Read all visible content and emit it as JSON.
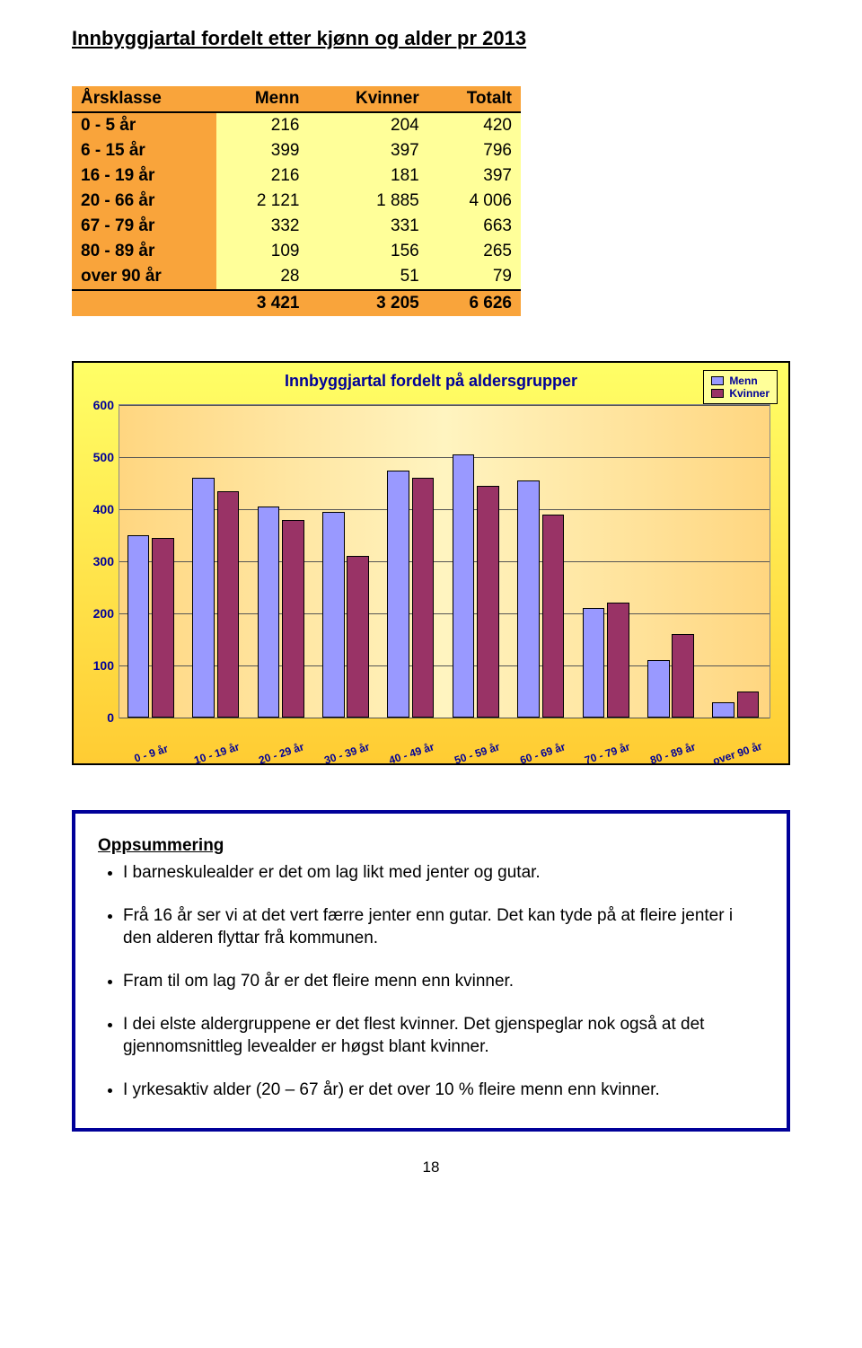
{
  "page": {
    "title": "Innbyggjartal fordelt etter kjønn og alder pr 2013",
    "page_number": "18"
  },
  "table": {
    "columns": [
      "Årsklasse",
      "Menn",
      "Kvinner",
      "Totalt"
    ],
    "rows": [
      [
        "0 -   5 år",
        "216",
        "204",
        "420"
      ],
      [
        "6 -  15 år",
        "399",
        "397",
        "796"
      ],
      [
        "16 -  19 år",
        "216",
        "181",
        "397"
      ],
      [
        "20 -  66 år",
        "2 121",
        "1 885",
        "4 006"
      ],
      [
        "67 -  79 år",
        "332",
        "331",
        "663"
      ],
      [
        "80 -  89 år",
        "109",
        "156",
        "265"
      ],
      [
        "over 90 år",
        "28",
        "51",
        "79"
      ]
    ],
    "totals": [
      "",
      "3 421",
      "3 205",
      "6 626"
    ]
  },
  "chart": {
    "title": "Innbyggjartal fordelt på aldersgrupper",
    "type": "bar",
    "legend": {
      "menn": "Menn",
      "kvinner": "Kvinner"
    },
    "colors": {
      "menn": "#9999ff",
      "kvinner": "#993366",
      "border": "#000000"
    },
    "ylim": [
      0,
      600
    ],
    "ytick_step": 100,
    "yticks": [
      "0",
      "100",
      "200",
      "300",
      "400",
      "500",
      "600"
    ],
    "categories": [
      "0 - 9 år",
      "10 - 19 år",
      "20 - 29 år",
      "30 - 39 år",
      "40 - 49 år",
      "50 - 59 år",
      "60 - 69 år",
      "70 - 79 år",
      "80 - 89 år",
      "over 90 år"
    ],
    "menn": [
      350,
      460,
      405,
      395,
      475,
      505,
      455,
      210,
      110,
      30
    ],
    "kvinner": [
      345,
      435,
      380,
      310,
      460,
      445,
      390,
      220,
      160,
      50
    ],
    "grid_color": "#555555"
  },
  "summary": {
    "heading": "Oppsummering",
    "bullets": [
      "I barneskulealder er det om lag likt med jenter og gutar.",
      "Frå 16 år ser vi at det vert færre jenter enn gutar.  Det kan tyde på at fleire jenter i den alderen flyttar frå kommunen.",
      "Fram til om lag 70 år er det fleire menn enn kvinner.",
      "I dei elste aldergruppene er det flest kvinner.  Det gjenspeglar nok også at det gjennomsnittleg levealder er høgst blant kvinner.",
      "I yrkesaktiv alder (20 – 67 år) er det over 10 % fleire menn enn kvinner."
    ]
  }
}
